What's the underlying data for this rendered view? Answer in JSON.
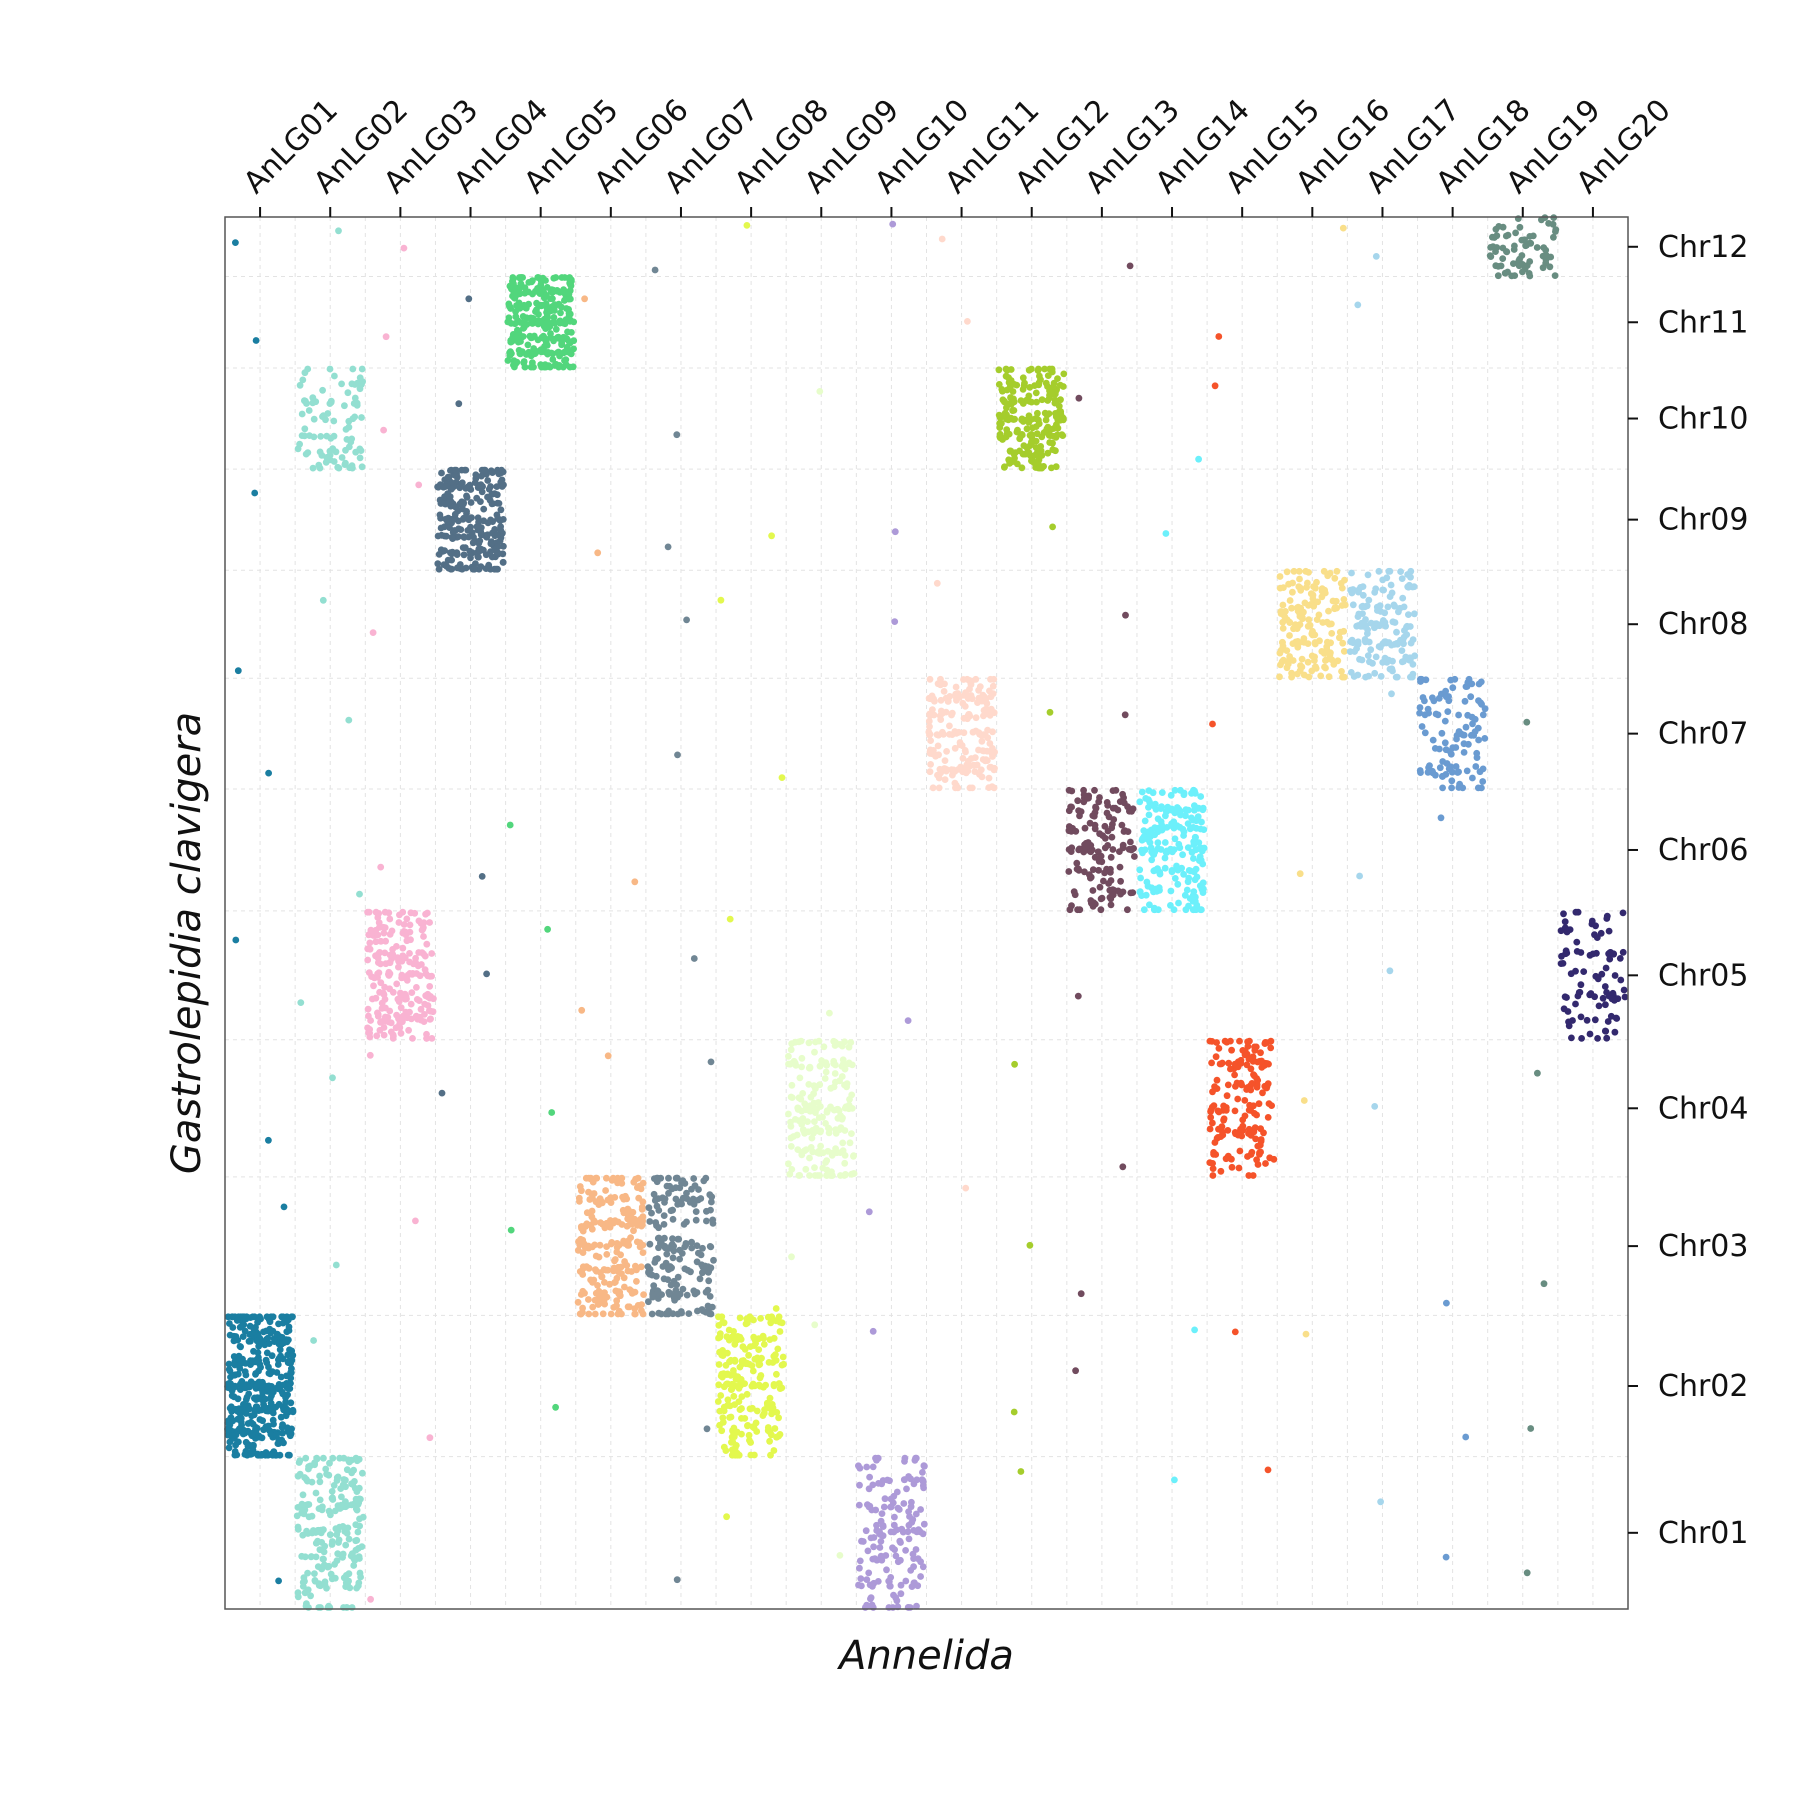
{
  "chart_data": {
    "type": "scatter",
    "title": "",
    "xlabel": "Annelida",
    "ylabel": "Gastrolepidia clavigera",
    "x_axis_position": "top",
    "y_axis_position": "right",
    "grid": true,
    "legend": "none",
    "x_categories": [
      "AnLG01",
      "AnLG02",
      "AnLG03",
      "AnLG04",
      "AnLG05",
      "AnLG06",
      "AnLG07",
      "AnLG08",
      "AnLG09",
      "AnLG10",
      "AnLG11",
      "AnLG12",
      "AnLG13",
      "AnLG14",
      "AnLG15",
      "AnLG16",
      "AnLG17",
      "AnLG18",
      "AnLG19",
      "AnLG20"
    ],
    "y_categories": [
      "Chr01",
      "Chr02",
      "Chr03",
      "Chr04",
      "Chr05",
      "Chr06",
      "Chr07",
      "Chr08",
      "Chr09",
      "Chr10",
      "Chr11",
      "Chr12"
    ],
    "y_block_sizes": [
      11,
      10.2,
      10,
      9.9,
      9.3,
      8.8,
      8,
      7.8,
      7.3,
      7.3,
      6.6,
      4.3
    ],
    "colors": {
      "AnLG01": "#1a7ea1",
      "AnLG02": "#93dfd1",
      "AnLG03": "#f9b3d2",
      "AnLG04": "#536f86",
      "AnLG05": "#52d67c",
      "AnLG06": "#f8b886",
      "AnLG07": "#708694",
      "AnLG08": "#e3f84e",
      "AnLG09": "#e7fdcb",
      "AnLG10": "#ad9ad8",
      "AnLG11": "#ffd9cc",
      "AnLG12": "#a5cd2c",
      "AnLG13": "#714b5e",
      "AnLG14": "#6cf0fb",
      "AnLG15": "#f5532a",
      "AnLG16": "#f9df8a",
      "AnLG17": "#a6d6ec",
      "AnLG18": "#6a9bd1",
      "AnLG19": "#688d81",
      "AnLG20": "#33296e"
    },
    "blocks": [
      {
        "x": "AnLG01",
        "y": "Chr02",
        "n": 420,
        "density": "high"
      },
      {
        "x": "AnLG02",
        "y": "Chr01",
        "n": 220
      },
      {
        "x": "AnLG02",
        "y": "Chr10",
        "n": 90
      },
      {
        "x": "AnLG03",
        "y": "Chr05",
        "n": 220
      },
      {
        "x": "AnLG04",
        "y": "Chr09",
        "n": 260
      },
      {
        "x": "AnLG05",
        "y": "Chr11",
        "n": 300
      },
      {
        "x": "AnLG06",
        "y": "Chr03",
        "n": 240
      },
      {
        "x": "AnLG07",
        "y": "Chr03",
        "n": 200
      },
      {
        "x": "AnLG08",
        "y": "Chr02",
        "n": 220
      },
      {
        "x": "AnLG09",
        "y": "Chr04",
        "n": 200
      },
      {
        "x": "AnLG10",
        "y": "Chr01",
        "n": 160
      },
      {
        "x": "AnLG11",
        "y": "Chr07",
        "n": 200
      },
      {
        "x": "AnLG12",
        "y": "Chr10",
        "n": 220
      },
      {
        "x": "AnLG13",
        "y": "Chr06",
        "n": 150
      },
      {
        "x": "AnLG14",
        "y": "Chr06",
        "n": 200
      },
      {
        "x": "AnLG15",
        "y": "Chr04",
        "n": 170
      },
      {
        "x": "AnLG16",
        "y": "Chr08",
        "n": 160
      },
      {
        "x": "AnLG17",
        "y": "Chr08",
        "n": 150
      },
      {
        "x": "AnLG18",
        "y": "Chr07",
        "n": 110
      },
      {
        "x": "AnLG19",
        "y": "Chr12",
        "n": 70
      },
      {
        "x": "AnLG20",
        "y": "Chr05",
        "n": 90
      }
    ],
    "scattered_points": [
      {
        "x": "AnLG01",
        "y": "Chr12"
      },
      {
        "x": "AnLG01",
        "y": "Chr11"
      },
      {
        "x": "AnLG01",
        "y": "Chr09"
      },
      {
        "x": "AnLG01",
        "y": "Chr08"
      },
      {
        "x": "AnLG01",
        "y": "Chr07"
      },
      {
        "x": "AnLG01",
        "y": "Chr05"
      },
      {
        "x": "AnLG01",
        "y": "Chr04"
      },
      {
        "x": "AnLG01",
        "y": "Chr03"
      },
      {
        "x": "AnLG01",
        "y": "Chr01"
      },
      {
        "x": "AnLG02",
        "y": "Chr12"
      },
      {
        "x": "AnLG02",
        "y": "Chr08"
      },
      {
        "x": "AnLG02",
        "y": "Chr07"
      },
      {
        "x": "AnLG02",
        "y": "Chr06"
      },
      {
        "x": "AnLG02",
        "y": "Chr05"
      },
      {
        "x": "AnLG02",
        "y": "Chr04"
      },
      {
        "x": "AnLG02",
        "y": "Chr03"
      },
      {
        "x": "AnLG02",
        "y": "Chr02"
      },
      {
        "x": "AnLG03",
        "y": "Chr12"
      },
      {
        "x": "AnLG03",
        "y": "Chr11"
      },
      {
        "x": "AnLG03",
        "y": "Chr10"
      },
      {
        "x": "AnLG03",
        "y": "Chr09"
      },
      {
        "x": "AnLG03",
        "y": "Chr08"
      },
      {
        "x": "AnLG03",
        "y": "Chr06"
      },
      {
        "x": "AnLG03",
        "y": "Chr04"
      },
      {
        "x": "AnLG03",
        "y": "Chr03"
      },
      {
        "x": "AnLG03",
        "y": "Chr02"
      },
      {
        "x": "AnLG03",
        "y": "Chr01"
      },
      {
        "x": "AnLG04",
        "y": "Chr11"
      },
      {
        "x": "AnLG04",
        "y": "Chr10"
      },
      {
        "x": "AnLG04",
        "y": "Chr06"
      },
      {
        "x": "AnLG04",
        "y": "Chr05"
      },
      {
        "x": "AnLG04",
        "y": "Chr04"
      },
      {
        "x": "AnLG05",
        "y": "Chr06"
      },
      {
        "x": "AnLG05",
        "y": "Chr05"
      },
      {
        "x": "AnLG05",
        "y": "Chr04"
      },
      {
        "x": "AnLG05",
        "y": "Chr03"
      },
      {
        "x": "AnLG05",
        "y": "Chr02"
      },
      {
        "x": "AnLG06",
        "y": "Chr11"
      },
      {
        "x": "AnLG06",
        "y": "Chr09"
      },
      {
        "x": "AnLG06",
        "y": "Chr06"
      },
      {
        "x": "AnLG06",
        "y": "Chr05"
      },
      {
        "x": "AnLG06",
        "y": "Chr04"
      },
      {
        "x": "AnLG07",
        "y": "Chr12"
      },
      {
        "x": "AnLG07",
        "y": "Chr10"
      },
      {
        "x": "AnLG07",
        "y": "Chr09"
      },
      {
        "x": "AnLG07",
        "y": "Chr08"
      },
      {
        "x": "AnLG07",
        "y": "Chr07"
      },
      {
        "x": "AnLG07",
        "y": "Chr05"
      },
      {
        "x": "AnLG07",
        "y": "Chr04"
      },
      {
        "x": "AnLG07",
        "y": "Chr02"
      },
      {
        "x": "AnLG07",
        "y": "Chr01"
      },
      {
        "x": "AnLG08",
        "y": "Chr12"
      },
      {
        "x": "AnLG08",
        "y": "Chr09"
      },
      {
        "x": "AnLG08",
        "y": "Chr08"
      },
      {
        "x": "AnLG08",
        "y": "Chr07"
      },
      {
        "x": "AnLG08",
        "y": "Chr05"
      },
      {
        "x": "AnLG08",
        "y": "Chr03"
      },
      {
        "x": "AnLG08",
        "y": "Chr01"
      },
      {
        "x": "AnLG09",
        "y": "Chr10"
      },
      {
        "x": "AnLG09",
        "y": "Chr05"
      },
      {
        "x": "AnLG09",
        "y": "Chr03"
      },
      {
        "x": "AnLG09",
        "y": "Chr02"
      },
      {
        "x": "AnLG09",
        "y": "Chr01"
      },
      {
        "x": "AnLG10",
        "y": "Chr12"
      },
      {
        "x": "AnLG10",
        "y": "Chr09"
      },
      {
        "x": "AnLG10",
        "y": "Chr08"
      },
      {
        "x": "AnLG10",
        "y": "Chr05"
      },
      {
        "x": "AnLG10",
        "y": "Chr03"
      },
      {
        "x": "AnLG10",
        "y": "Chr02"
      },
      {
        "x": "AnLG11",
        "y": "Chr12"
      },
      {
        "x": "AnLG11",
        "y": "Chr11"
      },
      {
        "x": "AnLG11",
        "y": "Chr08"
      },
      {
        "x": "AnLG11",
        "y": "Chr03"
      },
      {
        "x": "AnLG12",
        "y": "Chr09"
      },
      {
        "x": "AnLG12",
        "y": "Chr07"
      },
      {
        "x": "AnLG12",
        "y": "Chr04"
      },
      {
        "x": "AnLG12",
        "y": "Chr03"
      },
      {
        "x": "AnLG12",
        "y": "Chr02"
      },
      {
        "x": "AnLG12",
        "y": "Chr01"
      },
      {
        "x": "AnLG13",
        "y": "Chr12"
      },
      {
        "x": "AnLG13",
        "y": "Chr10"
      },
      {
        "x": "AnLG13",
        "y": "Chr08"
      },
      {
        "x": "AnLG13",
        "y": "Chr07"
      },
      {
        "x": "AnLG13",
        "y": "Chr05"
      },
      {
        "x": "AnLG13",
        "y": "Chr04"
      },
      {
        "x": "AnLG13",
        "y": "Chr03"
      },
      {
        "x": "AnLG13",
        "y": "Chr02"
      },
      {
        "x": "AnLG14",
        "y": "Chr10"
      },
      {
        "x": "AnLG14",
        "y": "Chr09"
      },
      {
        "x": "AnLG14",
        "y": "Chr02"
      },
      {
        "x": "AnLG14",
        "y": "Chr01"
      },
      {
        "x": "AnLG15",
        "y": "Chr11"
      },
      {
        "x": "AnLG15",
        "y": "Chr10"
      },
      {
        "x": "AnLG15",
        "y": "Chr07"
      },
      {
        "x": "AnLG15",
        "y": "Chr02"
      },
      {
        "x": "AnLG15",
        "y": "Chr01"
      },
      {
        "x": "AnLG16",
        "y": "Chr12"
      },
      {
        "x": "AnLG16",
        "y": "Chr06"
      },
      {
        "x": "AnLG16",
        "y": "Chr04"
      },
      {
        "x": "AnLG16",
        "y": "Chr02"
      },
      {
        "x": "AnLG17",
        "y": "Chr12"
      },
      {
        "x": "AnLG17",
        "y": "Chr11"
      },
      {
        "x": "AnLG17",
        "y": "Chr07"
      },
      {
        "x": "AnLG17",
        "y": "Chr06"
      },
      {
        "x": "AnLG17",
        "y": "Chr05"
      },
      {
        "x": "AnLG17",
        "y": "Chr04"
      },
      {
        "x": "AnLG17",
        "y": "Chr01"
      },
      {
        "x": "AnLG18",
        "y": "Chr06"
      },
      {
        "x": "AnLG18",
        "y": "Chr03"
      },
      {
        "x": "AnLG18",
        "y": "Chr02"
      },
      {
        "x": "AnLG18",
        "y": "Chr01"
      },
      {
        "x": "AnLG19",
        "y": "Chr07"
      },
      {
        "x": "AnLG19",
        "y": "Chr04"
      },
      {
        "x": "AnLG19",
        "y": "Chr03"
      },
      {
        "x": "AnLG19",
        "y": "Chr02"
      },
      {
        "x": "AnLG19",
        "y": "Chr01"
      }
    ]
  }
}
